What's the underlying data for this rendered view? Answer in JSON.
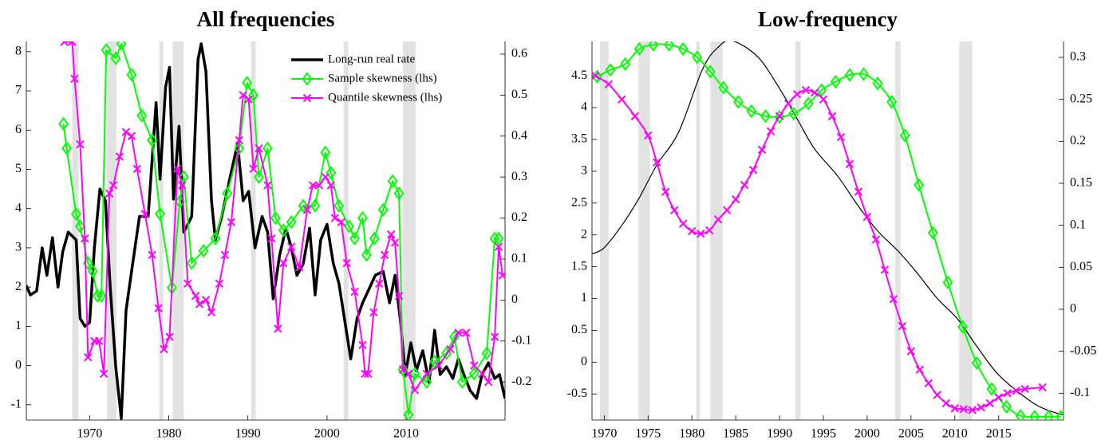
{
  "chart_data": [
    {
      "type": "line",
      "title": "All frequencies",
      "xlim": [
        1962,
        2022.5
      ],
      "xticks": [
        1970,
        1980,
        1990,
        2000,
        2010
      ],
      "ylim": [
        -1.39,
        8.26
      ],
      "yticks": [
        -1,
        0,
        1,
        2,
        3,
        4,
        5,
        6,
        7,
        8
      ],
      "y2lim": [
        -0.293,
        0.631
      ],
      "y2ticks": [
        -0.2,
        -0.1,
        0,
        0.1,
        0.2,
        0.3,
        0.4,
        0.5,
        0.6
      ],
      "grid": false,
      "legend": "upper right",
      "smooth": false,
      "recessions": [
        [
          1967.8,
          1968.6
        ],
        [
          1972.2,
          1973.4
        ],
        [
          1978.8,
          1979.3
        ],
        [
          1980.5,
          1981.9
        ],
        [
          1990.4,
          1991
        ],
        [
          2002.1,
          2002.7
        ],
        [
          2009.6,
          2011.2
        ]
      ],
      "series": [
        {
          "name": "Long-run real rate",
          "color": "#000000",
          "axis": "y",
          "x": [
            1962,
            1962.5,
            1963.3,
            1964,
            1964.6,
            1965.3,
            1966,
            1966.6,
            1967.3,
            1967.8,
            1968.3,
            1968.8,
            1969.4,
            1970,
            1970.6,
            1971.3,
            1972,
            1972.6,
            1973.3,
            1974,
            1974.6,
            1975.3,
            1976.3,
            1977.4,
            1978.4,
            1978.9,
            1979.6,
            1980.1,
            1980.6,
            1981.3,
            1981.9,
            1982.9,
            1983.7,
            1984.1,
            1984.7,
            1985.4,
            1985.9,
            1986.7,
            1987.7,
            1988.7,
            1989.4,
            1990.1,
            1990.9,
            1991.8,
            1992.5,
            1993.2,
            1994,
            1994.8,
            1995.5,
            1996.2,
            1997,
            1997.8,
            1998.5,
            1999.2,
            2000,
            2000.8,
            2001.5,
            2002.2,
            2003,
            2003.8,
            2004.5,
            2005.2,
            2006.1,
            2007.1,
            2007.9,
            2008.6,
            2009.3,
            2009.9,
            2010.6,
            2011.3,
            2012.1,
            2012.9,
            2013.6,
            2014.3,
            2015.1,
            2015.9,
            2016.6,
            2017.3,
            2018.1,
            2018.9,
            2019.6,
            2020.4,
            2021.2,
            2021.8,
            2022.5
          ],
          "values": [
            2.04,
            1.8,
            1.9,
            3.0,
            2.3,
            3.26,
            2.0,
            2.9,
            3.4,
            3.3,
            3.2,
            1.2,
            1.0,
            1.1,
            3.0,
            4.5,
            4.2,
            2.0,
            -0.03,
            -1.35,
            1.4,
            2.4,
            3.8,
            3.8,
            6.7,
            4.75,
            7.1,
            7.6,
            4.24,
            6.1,
            3.4,
            3.8,
            7.8,
            8.2,
            7.5,
            4.2,
            3.2,
            3.8,
            4.75,
            5.66,
            4.2,
            4.44,
            3.0,
            3.8,
            3.4,
            1.7,
            2.8,
            3.5,
            3.0,
            2.3,
            2.6,
            3.5,
            1.8,
            3.2,
            3.6,
            2.6,
            2.1,
            1.2,
            0.17,
            1.2,
            1.6,
            1.9,
            2.3,
            2.4,
            1.6,
            2.3,
            1.1,
            -0.23,
            0.58,
            -0.13,
            0.38,
            -0.43,
            0.9,
            -0.23,
            -0.03,
            -0.33,
            0.17,
            -0.23,
            -0.64,
            -0.84,
            -0.23,
            0.07,
            -0.33,
            -0.23,
            -0.84
          ]
        },
        {
          "name": "Sample skewness (lhs)",
          "color": "#00ff00",
          "axis": "y2",
          "marker": "diamond",
          "x": [
            1966.7,
            1967.1,
            1968.3,
            1968.8,
            1969.8,
            1970.4,
            1971,
            1971.5,
            1972.1,
            1973.3,
            1974,
            1975.3,
            1976.6,
            1977.9,
            1978.9,
            1980.4,
            1981.4,
            1981.9,
            1982.9,
            1984.4,
            1985.9,
            1987.4,
            1988.9,
            1989.9,
            1990.7,
            1991.4,
            1992.5,
            1993.5,
            1994.5,
            1995.5,
            1997,
            1998.5,
            1999.8,
            2000.5,
            2001.5,
            2002.8,
            2003.5,
            2004.5,
            2005,
            2006,
            2007.1,
            2008.3,
            2009.1,
            2009.6,
            2010.3,
            2011.1,
            2012.6,
            2013.6,
            2015.1,
            2016.1,
            2017.1,
            2018.6,
            2020.2,
            2021.2,
            2021.7
          ],
          "values": [
            0.43,
            0.37,
            0.21,
            0.18,
            0.09,
            0.07,
            0.01,
            0.01,
            0.61,
            0.59,
            0.625,
            0.55,
            0.45,
            0.39,
            0.21,
            0.03,
            0.24,
            0.3,
            0.09,
            0.12,
            0.15,
            0.26,
            0.37,
            0.53,
            0.5,
            0.3,
            0.37,
            0.2,
            0.17,
            0.19,
            0.23,
            0.23,
            0.36,
            0.31,
            0.23,
            0.18,
            0.15,
            0.2,
            0.11,
            0.15,
            0.22,
            0.29,
            0.26,
            -0.17,
            -0.28,
            -0.18,
            -0.2,
            -0.15,
            -0.13,
            -0.09,
            -0.2,
            -0.18,
            -0.13,
            0.15,
            0.15
          ]
        },
        {
          "name": "Quantile skewness (lhs)",
          "color": "#ff00ff",
          "axis": "y2",
          "marker": "x",
          "x": [
            1966.8,
            1967.8,
            1968.1,
            1968.8,
            1969.4,
            1969.8,
            1970.6,
            1971.2,
            1971.8,
            1972.5,
            1973,
            1973.8,
            1974.6,
            1975.3,
            1976,
            1977,
            1977.9,
            1978.7,
            1979.4,
            1980.1,
            1981.1,
            1981.7,
            1982.4,
            1983.4,
            1983.9,
            1984.7,
            1985.4,
            1986.4,
            1987.1,
            1987.9,
            1988.9,
            1989.4,
            1990.1,
            1990.7,
            1991.4,
            1992.5,
            1993,
            1993.8,
            1994.5,
            1995.5,
            1996.5,
            1997.5,
            1998.2,
            1999,
            1999.8,
            2000.5,
            2001,
            2001.8,
            2002.5,
            2003.5,
            2004.5,
            2004.8,
            2005.2,
            2005.9,
            2006.6,
            2007.3,
            2008.1,
            2008.6,
            2009.1,
            2009.6,
            2010.3,
            2011.1,
            2012.6,
            2014.1,
            2015.6,
            2016.6,
            2017.6,
            2018.6,
            2019.6,
            2020.4,
            2021.2,
            2021.7,
            2022.2
          ],
          "values": [
            0.63,
            0.63,
            0.54,
            0.38,
            0.15,
            -0.14,
            -0.1,
            -0.1,
            -0.18,
            0.26,
            0.28,
            0.35,
            0.41,
            0.4,
            0.32,
            0.21,
            0.11,
            -0.02,
            -0.12,
            -0.09,
            0.32,
            0.28,
            0.04,
            0.01,
            -0.01,
            0,
            -0.03,
            0.04,
            0.11,
            0.19,
            0.39,
            0.5,
            0.49,
            0.32,
            0.37,
            0.28,
            0.15,
            -0.07,
            0.09,
            0.13,
            0.08,
            0.22,
            0.28,
            0.28,
            0.3,
            0.28,
            0.2,
            0.19,
            0.09,
            0.02,
            -0.11,
            -0.18,
            -0.18,
            -0.03,
            0.04,
            0.11,
            0.16,
            0.14,
            0.01,
            -0.17,
            -0.18,
            -0.22,
            -0.18,
            -0.16,
            -0.12,
            -0.08,
            -0.08,
            -0.16,
            -0.18,
            -0.2,
            -0.09,
            0.13,
            0.06
          ]
        }
      ]
    },
    {
      "type": "line",
      "title": "Low-frequency",
      "xlim": [
        1968.6,
        2022.4
      ],
      "xticks": [
        1970,
        1975,
        1980,
        1985,
        1990,
        1995,
        2000,
        2005,
        2010,
        2015
      ],
      "ylim": [
        -0.91,
        5.04
      ],
      "yticks": [
        -0.5,
        0,
        0.5,
        1,
        1.5,
        2,
        2.5,
        3,
        3.5,
        4,
        4.5
      ],
      "y2lim": [
        -0.132,
        0.319
      ],
      "y2ticks": [
        -0.1,
        -0.05,
        0,
        0.05,
        0.1,
        0.15,
        0.2,
        0.25,
        0.3
      ],
      "grid": false,
      "smooth": true,
      "recessions": [
        [
          1969.5,
          1970.5
        ],
        [
          1973.9,
          1975.2
        ],
        [
          1980.5,
          1980.9
        ],
        [
          1982.1,
          1983.5
        ],
        [
          1991.8,
          1992.4
        ],
        [
          2003.2,
          2003.8
        ],
        [
          2010.5,
          2012
        ]
      ],
      "series": [
        {
          "color": "#000000",
          "axis": "y",
          "x": [
            1968.6,
            1970,
            1972,
            1973.9,
            1976,
            1978.5,
            1981.2,
            1983,
            1984.6,
            1987.5,
            1990,
            1992.1,
            1994,
            1996.6,
            1999,
            2001.2,
            2003.5,
            2005.7,
            2008,
            2010.3,
            2012.5,
            2015,
            2018.5,
            2020.5,
            2022.4
          ],
          "values": [
            1.7,
            1.8,
            2.15,
            2.56,
            3.1,
            3.62,
            4.6,
            4.95,
            5.05,
            4.8,
            4.3,
            3.8,
            3.35,
            2.93,
            2.45,
            2.06,
            1.75,
            1.4,
            1.0,
            0.68,
            0.25,
            -0.2,
            -0.6,
            -0.75,
            -0.83
          ]
        },
        {
          "color": "#00ff00",
          "axis": "y2",
          "marker": "diamond",
          "x": [
            1969.2,
            1970.7,
            1972.4,
            1974,
            1975.6,
            1977.4,
            1979,
            1980.6,
            1982.1,
            1983.6,
            1985.3,
            1986.8,
            1988.4,
            1990,
            1991.6,
            1993.3,
            1994.8,
            1996.4,
            1998,
            1999.6,
            2001.2,
            2002.8,
            2004.3,
            2005.9,
            2007.5,
            2009.2,
            2010.9,
            2012.5,
            2014.2,
            2015.9,
            2017.5,
            2019.1,
            2020.7,
            2022.1
          ],
          "values": [
            0.277,
            0.285,
            0.292,
            0.31,
            0.315,
            0.315,
            0.31,
            0.3,
            0.283,
            0.264,
            0.247,
            0.236,
            0.23,
            0.229,
            0.233,
            0.245,
            0.261,
            0.271,
            0.279,
            0.28,
            0.269,
            0.247,
            0.207,
            0.148,
            0.091,
            0.032,
            -0.021,
            -0.064,
            -0.095,
            -0.116,
            -0.127,
            -0.128,
            -0.128,
            -0.128
          ]
        },
        {
          "color": "#ff00ff",
          "axis": "y2",
          "marker": "x",
          "x": [
            1969,
            1970.5,
            1972,
            1973.5,
            1975,
            1976,
            1977,
            1978,
            1979,
            1980,
            1981,
            1982,
            1983,
            1984,
            1985,
            1986,
            1987,
            1988,
            1989,
            1990,
            1991,
            1992,
            1993,
            1994,
            1995,
            1996,
            1997,
            1998,
            1999,
            2000,
            2001,
            2002,
            2003,
            2004,
            2005,
            2006,
            2007,
            2008,
            2009,
            2010,
            2011,
            2012,
            2013,
            2014,
            2015,
            2016,
            2017,
            2018,
            2020
          ],
          "values": [
            0.278,
            0.268,
            0.25,
            0.23,
            0.207,
            0.175,
            0.14,
            0.118,
            0.102,
            0.093,
            0.09,
            0.094,
            0.107,
            0.118,
            0.131,
            0.148,
            0.166,
            0.19,
            0.212,
            0.23,
            0.245,
            0.256,
            0.261,
            0.258,
            0.25,
            0.23,
            0.205,
            0.173,
            0.14,
            0.11,
            0.083,
            0.047,
            0.012,
            -0.02,
            -0.05,
            -0.072,
            -0.088,
            -0.102,
            -0.112,
            -0.118,
            -0.119,
            -0.12,
            -0.117,
            -0.112,
            -0.105,
            -0.1,
            -0.097,
            -0.095,
            -0.093
          ]
        }
      ]
    }
  ]
}
